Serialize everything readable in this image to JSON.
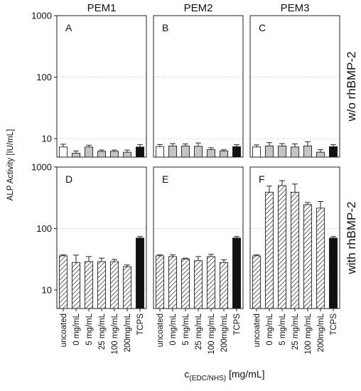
{
  "chart_data": {
    "type": "bar",
    "ylabel": "ALP Activity [IU/mL]",
    "xlabel": "c",
    "xlabel_subscript": "(EDC/NHS)",
    "xlabel_unit": " [mg/mL]",
    "yscale": "log",
    "ylim": [
      5,
      1000
    ],
    "yticks": [
      {
        "value": 10,
        "label": "10"
      },
      {
        "value": 100,
        "label": "100"
      },
      {
        "value": 1000,
        "label": "1000"
      }
    ],
    "grid": "dotted horizontal at 10 and 100",
    "categories": [
      "uncoated",
      "0 mg/mL",
      "5 mg/mL",
      "25 mg/mL",
      "100 mg/mL",
      "200mg/mL",
      "TCPS"
    ],
    "category_styles": [
      "white",
      "gray",
      "gray",
      "gray",
      "gray",
      "gray",
      "black"
    ],
    "hatched_row": 1,
    "columns": [
      "PEM1",
      "PEM2",
      "PEM3"
    ],
    "rows": [
      "w/o rhBMP-2",
      "with rhBMP-2"
    ],
    "panels": [
      {
        "letter": "A",
        "row": 0,
        "col": 0,
        "values": [
          7.3,
          5.8,
          7.3,
          6.2,
          6.2,
          6.0,
          7.3
        ],
        "errors": [
          0.8,
          0.5,
          0.5,
          0.3,
          0.3,
          0.5,
          0.7
        ]
      },
      {
        "letter": "B",
        "row": 0,
        "col": 1,
        "values": [
          7.4,
          7.6,
          7.6,
          7.5,
          6.6,
          6.3,
          7.4
        ],
        "errors": [
          0.6,
          0.7,
          0.6,
          1.0,
          0.5,
          0.3,
          0.6
        ]
      },
      {
        "letter": "C",
        "row": 0,
        "col": 2,
        "values": [
          7.3,
          7.6,
          7.6,
          7.3,
          7.6,
          6.0,
          7.4
        ],
        "errors": [
          0.6,
          1.0,
          0.7,
          0.9,
          1.3,
          0.6,
          0.6
        ]
      },
      {
        "letter": "D",
        "row": 1,
        "col": 0,
        "values": [
          36,
          28,
          29,
          29,
          29,
          24,
          70
        ],
        "errors": [
          1.5,
          9,
          6,
          4,
          2.5,
          1.5,
          4
        ]
      },
      {
        "letter": "E",
        "row": 1,
        "col": 1,
        "values": [
          36,
          35,
          32,
          30,
          35,
          28,
          70
        ],
        "errors": [
          1.5,
          2.5,
          1,
          5,
          3,
          3,
          4
        ]
      },
      {
        "letter": "F",
        "row": 1,
        "col": 2,
        "values": [
          36,
          390,
          500,
          390,
          245,
          215,
          70
        ],
        "errors": [
          1.5,
          100,
          100,
          140,
          20,
          60,
          4
        ]
      }
    ]
  }
}
